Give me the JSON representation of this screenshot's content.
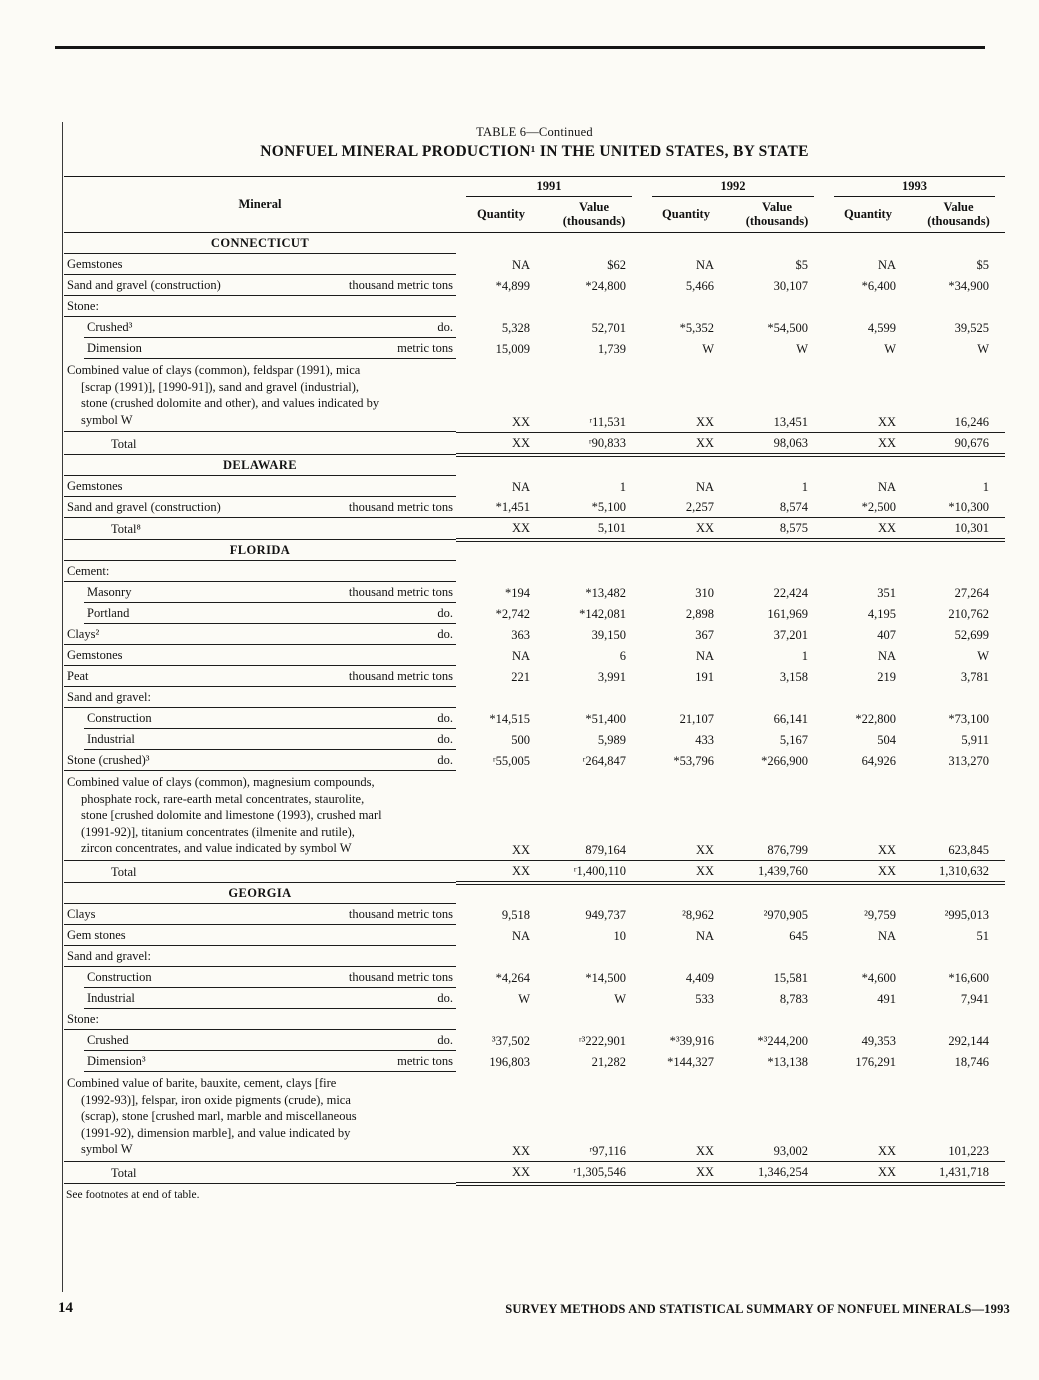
{
  "page": {
    "table_label": "TABLE 6—Continued",
    "title": "NONFUEL MINERAL PRODUCTION¹ IN THE UNITED STATES, BY STATE",
    "footnote": "See footnotes at end of table.",
    "page_number": "14",
    "running_footer": "SURVEY METHODS AND STATISTICAL SUMMARY OF NONFUEL MINERALS—1993"
  },
  "table": {
    "header": {
      "mineral": "Mineral",
      "quantity": "Quantity",
      "value1": "Value",
      "value2": "(thousands)",
      "years": [
        "1991",
        "1992",
        "1993"
      ]
    },
    "rows": [
      {
        "t": "section",
        "label": "CONNECTICUT"
      },
      {
        "t": "data",
        "label": "Gemstones",
        "unit": "",
        "v": [
          "NA",
          "$62",
          "NA",
          "$5",
          "NA",
          "$5"
        ]
      },
      {
        "t": "data",
        "label": "Sand and gravel (construction)",
        "unit": "thousand metric tons",
        "v": [
          "*4,899",
          "*24,800",
          "5,466",
          "30,107",
          "*6,400",
          "*34,900"
        ]
      },
      {
        "t": "group",
        "label": "Stone:"
      },
      {
        "t": "data",
        "indent": 1,
        "label": "Crushed³",
        "unit": "do.",
        "v": [
          "5,328",
          "52,701",
          "*5,352",
          "*54,500",
          "4,599",
          "39,525"
        ]
      },
      {
        "t": "data",
        "indent": 1,
        "label": "Dimension",
        "unit": "metric tons",
        "v": [
          "15,009",
          "1,739",
          "W",
          "W",
          "W",
          "W"
        ]
      },
      {
        "t": "combined",
        "ul": true,
        "label": "Combined value of clays (common), feldspar (1991), mica\n[scrap (1991)], [1990-91]), sand and gravel (industrial),\nstone (crushed dolomite and other), and values indicated by\nsymbol W",
        "v": [
          "XX",
          "ʳ11,531",
          "XX",
          "13,451",
          "XX",
          "16,246"
        ]
      },
      {
        "t": "total",
        "label": "Total",
        "v": [
          "XX",
          "ʳ90,833",
          "XX",
          "98,063",
          "XX",
          "90,676"
        ]
      },
      {
        "t": "section",
        "label": "DELAWARE"
      },
      {
        "t": "data",
        "label": "Gemstones",
        "unit": "",
        "v": [
          "NA",
          "1",
          "NA",
          "1",
          "NA",
          "1"
        ]
      },
      {
        "t": "data",
        "ul": true,
        "label": "Sand and gravel (construction)",
        "unit": "thousand metric tons",
        "v": [
          "*1,451",
          "*5,100",
          "2,257",
          "8,574",
          "*2,500",
          "*10,300"
        ]
      },
      {
        "t": "total",
        "label": "Total⁸",
        "v": [
          "XX",
          "5,101",
          "XX",
          "8,575",
          "XX",
          "10,301"
        ]
      },
      {
        "t": "section",
        "label": "FLORIDA"
      },
      {
        "t": "group",
        "label": "Cement:"
      },
      {
        "t": "data",
        "indent": 1,
        "label": "Masonry",
        "unit": "thousand metric tons",
        "v": [
          "*194",
          "*13,482",
          "310",
          "22,424",
          "351",
          "27,264"
        ]
      },
      {
        "t": "data",
        "indent": 1,
        "label": "Portland",
        "unit": "do.",
        "v": [
          "*2,742",
          "*142,081",
          "2,898",
          "161,969",
          "4,195",
          "210,762"
        ]
      },
      {
        "t": "data",
        "label": "Clays²",
        "unit": "do.",
        "v": [
          "363",
          "39,150",
          "367",
          "37,201",
          "407",
          "52,699"
        ]
      },
      {
        "t": "data",
        "label": "Gemstones",
        "unit": "",
        "v": [
          "NA",
          "6",
          "NA",
          "1",
          "NA",
          "W"
        ]
      },
      {
        "t": "data",
        "label": "Peat",
        "unit": "thousand metric tons",
        "v": [
          "221",
          "3,991",
          "191",
          "3,158",
          "219",
          "3,781"
        ]
      },
      {
        "t": "group",
        "label": "Sand and gravel:"
      },
      {
        "t": "data",
        "indent": 1,
        "label": "Construction",
        "unit": "do.",
        "v": [
          "*14,515",
          "*51,400",
          "21,107",
          "66,141",
          "*22,800",
          "*73,100"
        ]
      },
      {
        "t": "data",
        "indent": 1,
        "label": "Industrial",
        "unit": "do.",
        "v": [
          "500",
          "5,989",
          "433",
          "5,167",
          "504",
          "5,911"
        ]
      },
      {
        "t": "data",
        "label": "Stone (crushed)³",
        "unit": "do.",
        "v": [
          "ʳ55,005",
          "ʳ264,847",
          "*53,796",
          "*266,900",
          "64,926",
          "313,270"
        ]
      },
      {
        "t": "combined",
        "ul": true,
        "label": "Combined value of clays (common), magnesium compounds,\nphosphate rock, rare-earth metal concentrates, staurolite,\nstone [crushed dolomite and limestone (1993), crushed marl\n(1991-92)], titanium concentrates (ilmenite and rutile),\nzircon concentrates, and value indicated by symbol W",
        "v": [
          "XX",
          "879,164",
          "XX",
          "876,799",
          "XX",
          "623,845"
        ]
      },
      {
        "t": "total",
        "label": "Total",
        "v": [
          "XX",
          "ʳ1,400,110",
          "XX",
          "1,439,760",
          "XX",
          "1,310,632"
        ]
      },
      {
        "t": "section",
        "label": "GEORGIA"
      },
      {
        "t": "data",
        "label": "Clays",
        "unit": "thousand metric tons",
        "v": [
          "9,518",
          "949,737",
          "²8,962",
          "²970,905",
          "²9,759",
          "²995,013"
        ]
      },
      {
        "t": "data",
        "label": "Gem stones",
        "unit": "",
        "v": [
          "NA",
          "10",
          "NA",
          "645",
          "NA",
          "51"
        ]
      },
      {
        "t": "group",
        "label": "Sand and gravel:"
      },
      {
        "t": "data",
        "indent": 1,
        "label": "Construction",
        "unit": "thousand metric tons",
        "v": [
          "*4,264",
          "*14,500",
          "4,409",
          "15,581",
          "*4,600",
          "*16,600"
        ]
      },
      {
        "t": "data",
        "indent": 1,
        "label": "Industrial",
        "unit": "do.",
        "v": [
          "W",
          "W",
          "533",
          "8,783",
          "491",
          "7,941"
        ]
      },
      {
        "t": "group",
        "label": "Stone:"
      },
      {
        "t": "data",
        "indent": 1,
        "label": "Crushed",
        "unit": "do.",
        "v": [
          "³37,502",
          "ʳ³222,901",
          "*³39,916",
          "*³244,200",
          "49,353",
          "292,144"
        ]
      },
      {
        "t": "data",
        "indent": 1,
        "label": "Dimension³",
        "unit": "metric tons",
        "v": [
          "196,803",
          "21,282",
          "*144,327",
          "*13,138",
          "176,291",
          "18,746"
        ]
      },
      {
        "t": "combined",
        "ul": true,
        "label": "Combined value of barite, bauxite, cement, clays [fire\n(1992-93)], felspar, iron oxide pigments (crude), mica\n(scrap), stone [crushed marl, marble and miscellaneous\n(1991-92), dimension marble], and value indicated by\nsymbol W",
        "v": [
          "XX",
          "ʳ97,116",
          "XX",
          "93,002",
          "XX",
          "101,223"
        ]
      },
      {
        "t": "total",
        "label": "Total",
        "v": [
          "XX",
          "ʳ1,305,546",
          "XX",
          "1,346,254",
          "XX",
          "1,431,718"
        ]
      }
    ]
  }
}
